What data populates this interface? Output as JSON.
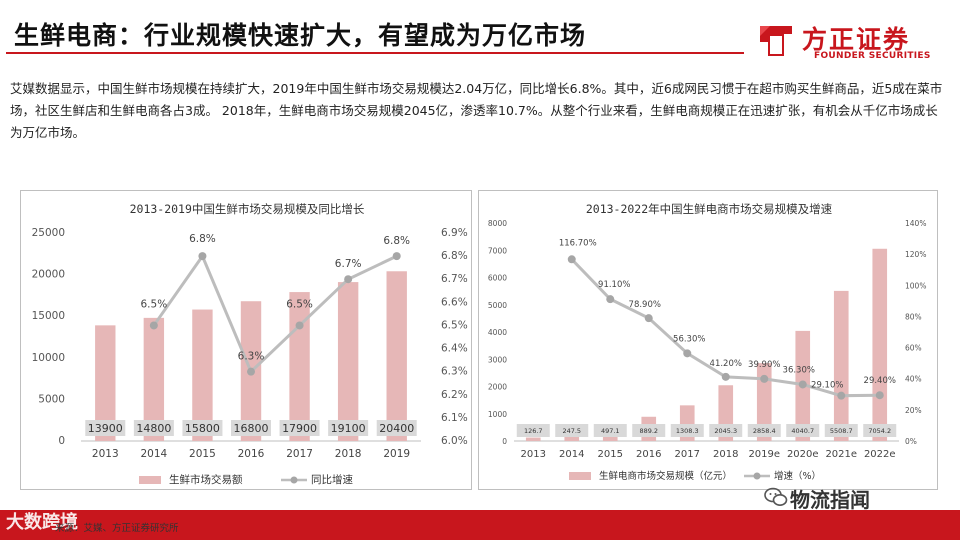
{
  "header": {
    "title": "生鲜电商：行业规模快速扩大，有望成为万亿市场"
  },
  "logo": {
    "text_cn": "方正证券",
    "text_en": "FOUNDER SECURITIES"
  },
  "intro": "艾媒数据显示，中国生鲜市场规模在持续扩大，2019年中国生鲜市场交易规模达2.04万亿，同比增长6.8%。其中，近6成网民习惯于在超市购买生鲜商品，近5成在菜市场，社区生鲜店和生鲜电商各占3成。 2018年，生鲜电商市场交易规模2045亿，渗透率10.7%。从整个行业来看，生鲜电商规模正在迅速扩张，有机会从千亿市场成长为万亿市场。",
  "footer": {
    "source": "来源：艾媒、方正证券研究所",
    "watermark_left": "大数跨境",
    "watermark_right": "物流指闻"
  },
  "colors": {
    "accent": "#c8161d",
    "bar": "#e6b7b7",
    "line": "#bdbdbd",
    "marker": "#a6a6a6"
  },
  "chart_data": [
    {
      "type": "bar+line",
      "title": "2013-2019中国生鲜市场交易规模及同比增长",
      "categories": [
        "2013",
        "2014",
        "2015",
        "2016",
        "2017",
        "2018",
        "2019"
      ],
      "series": [
        {
          "name": "生鲜市场交易额",
          "type": "bar",
          "axis": "left",
          "values": [
            13900,
            14800,
            15800,
            16800,
            17900,
            19100,
            20400
          ]
        },
        {
          "name": "同比增速",
          "type": "line",
          "axis": "right",
          "values": [
            null,
            6.5,
            6.8,
            6.3,
            6.5,
            6.7,
            6.8
          ]
        }
      ],
      "bar_labels": [
        "13900",
        "14800",
        "15800",
        "16800",
        "17900",
        "19100",
        "20400"
      ],
      "line_labels": [
        "",
        "6.5%",
        "6.8%",
        "6.3%",
        "6.5%",
        "6.7%",
        "6.8%"
      ],
      "y_left": {
        "min": 0,
        "max": 25000,
        "ticks": [
          "0",
          "5000",
          "10000",
          "15000",
          "20000",
          "25000"
        ]
      },
      "y_right": {
        "min": 6.0,
        "max": 6.9,
        "ticks": [
          "6.0%",
          "6.1%",
          "6.2%",
          "6.3%",
          "6.4%",
          "6.5%",
          "6.6%",
          "6.7%",
          "6.8%",
          "6.9%"
        ]
      },
      "legend": [
        {
          "name": "生鲜市场交易额",
          "type": "bar"
        },
        {
          "name": "同比增速",
          "type": "line"
        }
      ]
    },
    {
      "type": "bar+line",
      "title": "2013-2022年中国生鲜电商市场交易规模及增速",
      "categories": [
        "2013",
        "2014",
        "2015",
        "2016",
        "2017",
        "2018",
        "2019e",
        "2020e",
        "2021e",
        "2022e"
      ],
      "series": [
        {
          "name": "生鲜电商市场交易规模（亿元）",
          "type": "bar",
          "axis": "left",
          "values": [
            126.7,
            247.5,
            497.1,
            889.2,
            1308.3,
            2045.3,
            2858.4,
            4040.7,
            5508.7,
            7054.2
          ]
        },
        {
          "name": "增速（%）",
          "type": "line",
          "axis": "right",
          "values": [
            null,
            116.7,
            91.1,
            78.9,
            56.3,
            41.2,
            39.9,
            36.3,
            29.1,
            29.4
          ]
        }
      ],
      "bar_labels": [
        "126.7",
        "247.5",
        "497.1",
        "889.2",
        "1308.3",
        "2045.3",
        "2858.4",
        "4040.7",
        "5508.7",
        "7054.2"
      ],
      "line_labels": [
        "",
        "116.70%",
        "91.10%",
        "78.90%",
        "56.30%",
        "41.20%",
        "39.90%",
        "36.30%",
        "29.10%",
        "29.40%"
      ],
      "y_left": {
        "min": 0,
        "max": 8000,
        "ticks": [
          "0",
          "1000",
          "2000",
          "3000",
          "4000",
          "5000",
          "6000",
          "7000",
          "8000"
        ]
      },
      "y_right": {
        "min": 0,
        "max": 140,
        "ticks": [
          "0%",
          "20%",
          "40%",
          "60%",
          "80%",
          "100%",
          "120%",
          "140%"
        ]
      },
      "legend": [
        {
          "name": "生鲜电商市场交易规模（亿元）",
          "type": "bar"
        },
        {
          "name": "增速（%）",
          "type": "line"
        }
      ]
    }
  ]
}
